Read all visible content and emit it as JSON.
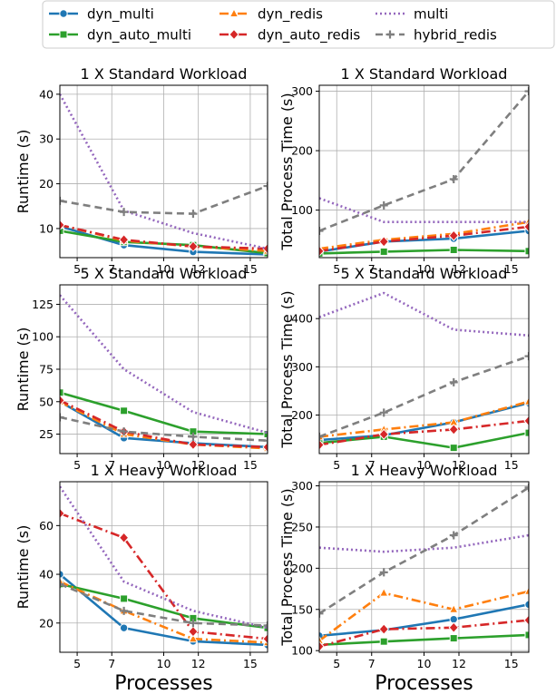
{
  "legend": {
    "placement": "top-center",
    "entries": [
      {
        "name": "dyn_multi",
        "color": "#1f77b4",
        "dash": "",
        "marker": "circle"
      },
      {
        "name": "dyn_auto_multi",
        "color": "#2ca02c",
        "dash": "",
        "marker": "square"
      },
      {
        "name": "dyn_redis",
        "color": "#ff7f0e",
        "dash": "10,4,2,4",
        "marker": "triangle"
      },
      {
        "name": "dyn_auto_redis",
        "color": "#d62728",
        "dash": "10,4,2,4",
        "marker": "diamond"
      },
      {
        "name": "multi",
        "color": "#9467bd",
        "dash": "2,3",
        "marker": "none"
      },
      {
        "name": "hybrid_redis",
        "color": "#7f7f7f",
        "dash": "8,5",
        "marker": "plus"
      }
    ]
  },
  "chart_data": [
    {
      "type": "line",
      "title": "1 X Standard Workload",
      "xlabel": "",
      "ylabel": "Runtime (s)",
      "xlim": [
        4,
        16
      ],
      "ylim": [
        3.5,
        42
      ],
      "xticks": [
        5,
        7,
        10,
        12,
        15
      ],
      "yticks": [
        10,
        20,
        30,
        40
      ],
      "grid": true,
      "x": [
        4,
        7.7,
        11.7,
        16
      ],
      "series": [
        {
          "name": "dyn_multi",
          "values": [
            10.5,
            6.3,
            4.8,
            4.2
          ]
        },
        {
          "name": "dyn_auto_multi",
          "values": [
            9.5,
            7,
            6.3,
            4.5
          ]
        },
        {
          "name": "dyn_redis",
          "values": [
            10.8,
            7.3,
            6,
            5
          ]
        },
        {
          "name": "dyn_auto_redis",
          "values": [
            10.8,
            7.5,
            6,
            5.5
          ]
        },
        {
          "name": "multi",
          "values": [
            40,
            14,
            9,
            5.5
          ]
        },
        {
          "name": "hybrid_redis",
          "values": [
            16.2,
            13.7,
            13.3,
            19.5
          ]
        }
      ]
    },
    {
      "type": "line",
      "title": "1 X Standard Workload",
      "xlabel": "",
      "ylabel": "Total Process Time (s)",
      "xlim": [
        4,
        16
      ],
      "ylim": [
        20,
        310
      ],
      "xticks": [
        5,
        7,
        10,
        12,
        15
      ],
      "yticks": [
        100,
        200,
        300
      ],
      "grid": true,
      "x": [
        4,
        7.7,
        11.7,
        16
      ],
      "series": [
        {
          "name": "dyn_multi",
          "values": [
            30,
            47,
            52,
            65
          ]
        },
        {
          "name": "dyn_auto_multi",
          "values": [
            27,
            30,
            33,
            31
          ]
        },
        {
          "name": "dyn_redis",
          "values": [
            35,
            50,
            60,
            80
          ]
        },
        {
          "name": "dyn_auto_redis",
          "values": [
            31,
            47,
            57,
            72
          ]
        },
        {
          "name": "multi",
          "values": [
            120,
            80,
            80,
            80
          ]
        },
        {
          "name": "hybrid_redis",
          "values": [
            65,
            108,
            152,
            300
          ]
        }
      ]
    },
    {
      "type": "line",
      "title": "5 X Standard Workload",
      "xlabel": "",
      "ylabel": "Runtime (s)",
      "xlim": [
        4,
        16
      ],
      "ylim": [
        10,
        140
      ],
      "xticks": [
        5,
        7,
        10,
        12,
        15
      ],
      "yticks": [
        25,
        50,
        75,
        100,
        125
      ],
      "grid": true,
      "x": [
        4,
        7.7,
        11.7,
        16
      ],
      "series": [
        {
          "name": "dyn_multi",
          "values": [
            50,
            22,
            18,
            15
          ]
        },
        {
          "name": "dyn_auto_multi",
          "values": [
            57,
            43,
            27,
            25
          ]
        },
        {
          "name": "dyn_redis",
          "values": [
            50,
            25,
            17,
            14
          ]
        },
        {
          "name": "dyn_auto_redis",
          "values": [
            51,
            27,
            17,
            15
          ]
        },
        {
          "name": "multi",
          "values": [
            132,
            75,
            42,
            26
          ]
        },
        {
          "name": "hybrid_redis",
          "values": [
            38,
            27,
            23,
            20
          ]
        }
      ]
    },
    {
      "type": "line",
      "title": "5 X Standard Workload",
      "xlabel": "",
      "ylabel": "Total Process Time (s)",
      "xlim": [
        4,
        16
      ],
      "ylim": [
        120,
        470
      ],
      "xticks": [
        5,
        7,
        10,
        12,
        15
      ],
      "yticks": [
        200,
        300,
        400
      ],
      "grid": true,
      "x": [
        4,
        7.7,
        11.7,
        16
      ],
      "series": [
        {
          "name": "dyn_multi",
          "values": [
            148,
            158,
            185,
            225
          ]
        },
        {
          "name": "dyn_auto_multi",
          "values": [
            142,
            155,
            132,
            163
          ]
        },
        {
          "name": "dyn_redis",
          "values": [
            155,
            170,
            185,
            228
          ]
        },
        {
          "name": "dyn_auto_redis",
          "values": [
            138,
            160,
            170,
            188
          ]
        },
        {
          "name": "multi",
          "values": [
            403,
            453,
            377,
            365
          ]
        },
        {
          "name": "hybrid_redis",
          "values": [
            155,
            205,
            268,
            322
          ]
        }
      ]
    },
    {
      "type": "line",
      "title": "1 X Heavy Workload",
      "xlabel": "Processes",
      "ylabel": "Runtime (s)",
      "xlim": [
        4,
        16
      ],
      "ylim": [
        8,
        78
      ],
      "xticks": [
        5,
        7,
        10,
        12,
        15
      ],
      "yticks": [
        20,
        40,
        60
      ],
      "grid": true,
      "x": [
        4,
        7.7,
        11.7,
        16
      ],
      "series": [
        {
          "name": "dyn_multi",
          "values": [
            40,
            18,
            12.5,
            11
          ]
        },
        {
          "name": "dyn_auto_multi",
          "values": [
            36,
            30,
            22,
            18
          ]
        },
        {
          "name": "dyn_redis",
          "values": [
            37,
            25,
            13.5,
            12
          ]
        },
        {
          "name": "dyn_auto_redis",
          "values": [
            65,
            55,
            16.5,
            13.5
          ]
        },
        {
          "name": "multi",
          "values": [
            76,
            37,
            25,
            18
          ]
        },
        {
          "name": "hybrid_redis",
          "values": [
            36,
            25,
            20,
            19
          ]
        }
      ]
    },
    {
      "type": "line",
      "title": "1 X Heavy Workload",
      "xlabel": "Processes",
      "ylabel": "Total Process Time (s)",
      "xlim": [
        4,
        16
      ],
      "ylim": [
        98,
        305
      ],
      "xticks": [
        5,
        7,
        10,
        12,
        15
      ],
      "yticks": [
        100,
        150,
        200,
        250,
        300
      ],
      "grid": true,
      "x": [
        4,
        7.7,
        11.7,
        16
      ],
      "series": [
        {
          "name": "dyn_multi",
          "values": [
            118,
            125,
            138,
            156
          ]
        },
        {
          "name": "dyn_auto_multi",
          "values": [
            107,
            111,
            115,
            119
          ]
        },
        {
          "name": "dyn_redis",
          "values": [
            112,
            170,
            150,
            172
          ]
        },
        {
          "name": "dyn_auto_redis",
          "values": [
            105,
            126,
            128,
            137
          ]
        },
        {
          "name": "multi",
          "values": [
            225,
            220,
            225,
            240
          ]
        },
        {
          "name": "hybrid_redis",
          "values": [
            145,
            195,
            240,
            298
          ]
        }
      ]
    }
  ]
}
